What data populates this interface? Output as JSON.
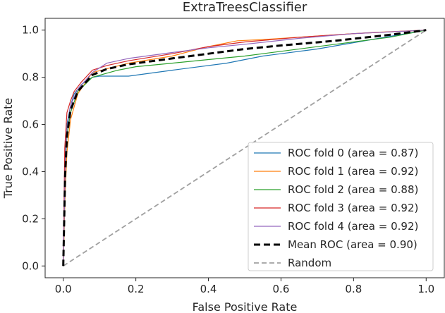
{
  "chart_data": {
    "type": "line",
    "title": "ExtraTreesClassifier",
    "xlabel": "False Positive Rate",
    "ylabel": "True Positive Rate",
    "xlim": [
      -0.05,
      1.05
    ],
    "ylim": [
      -0.05,
      1.05
    ],
    "xticks": [
      0.0,
      0.2,
      0.4,
      0.6,
      0.8,
      1.0
    ],
    "xtick_labels": [
      "0.0",
      "0.2",
      "0.4",
      "0.6",
      "0.8",
      "1.0"
    ],
    "yticks": [
      0.0,
      0.2,
      0.4,
      0.6,
      0.8,
      1.0
    ],
    "ytick_labels": [
      "0.0",
      "0.2",
      "0.4",
      "0.6",
      "0.8",
      "1.0"
    ],
    "grid": false,
    "legend_position": "lower-right",
    "series": [
      {
        "name": "ROC fold 0 (area = 0.87)",
        "color": "#1f77b4",
        "style": "solid",
        "x": [
          0.0,
          0.005,
          0.01,
          0.02,
          0.03,
          0.05,
          0.08,
          0.1,
          0.18,
          0.3,
          0.45,
          0.55,
          0.7,
          0.85,
          1.0
        ],
        "y": [
          0.0,
          0.45,
          0.6,
          0.68,
          0.73,
          0.77,
          0.8,
          0.805,
          0.805,
          0.83,
          0.86,
          0.89,
          0.92,
          0.96,
          1.0
        ]
      },
      {
        "name": "ROC fold 1 (area = 0.92)",
        "color": "#ff7f0e",
        "style": "solid",
        "x": [
          0.0,
          0.005,
          0.01,
          0.02,
          0.04,
          0.08,
          0.18,
          0.3,
          0.4,
          0.48,
          0.55,
          0.7,
          0.85,
          1.0
        ],
        "y": [
          0.0,
          0.3,
          0.48,
          0.62,
          0.73,
          0.82,
          0.86,
          0.89,
          0.93,
          0.955,
          0.96,
          0.975,
          0.99,
          1.0
        ]
      },
      {
        "name": "ROC fold 2 (area = 0.88)",
        "color": "#2ca02c",
        "style": "solid",
        "x": [
          0.0,
          0.005,
          0.01,
          0.02,
          0.04,
          0.08,
          0.15,
          0.2,
          0.3,
          0.4,
          0.5,
          0.6,
          0.75,
          0.9,
          1.0
        ],
        "y": [
          0.0,
          0.4,
          0.55,
          0.65,
          0.74,
          0.8,
          0.83,
          0.845,
          0.86,
          0.875,
          0.89,
          0.91,
          0.94,
          0.97,
          1.0
        ]
      },
      {
        "name": "ROC fold 3 (area = 0.92)",
        "color": "#d62728",
        "style": "solid",
        "x": [
          0.0,
          0.004,
          0.01,
          0.02,
          0.03,
          0.05,
          0.08,
          0.12,
          0.18,
          0.3,
          0.4,
          0.5,
          0.65,
          0.8,
          1.0
        ],
        "y": [
          0.0,
          0.5,
          0.65,
          0.7,
          0.74,
          0.78,
          0.83,
          0.85,
          0.87,
          0.9,
          0.93,
          0.95,
          0.97,
          0.985,
          1.0
        ]
      },
      {
        "name": "ROC fold 4 (area = 0.92)",
        "color": "#9467bd",
        "style": "solid",
        "x": [
          0.0,
          0.005,
          0.01,
          0.02,
          0.04,
          0.08,
          0.12,
          0.18,
          0.3,
          0.4,
          0.5,
          0.65,
          0.8,
          1.0
        ],
        "y": [
          0.0,
          0.4,
          0.58,
          0.68,
          0.75,
          0.82,
          0.86,
          0.88,
          0.905,
          0.925,
          0.94,
          0.965,
          0.985,
          1.0
        ]
      },
      {
        "name": "Mean ROC (area = 0.90)",
        "color": "#000000",
        "style": "dashed-bold",
        "x": [
          0.0,
          0.005,
          0.01,
          0.02,
          0.04,
          0.08,
          0.12,
          0.18,
          0.3,
          0.4,
          0.5,
          0.6,
          0.75,
          0.9,
          1.0
        ],
        "y": [
          0.0,
          0.38,
          0.55,
          0.66,
          0.74,
          0.81,
          0.835,
          0.855,
          0.88,
          0.9,
          0.92,
          0.935,
          0.955,
          0.98,
          1.0
        ]
      },
      {
        "name": "Random",
        "color": "#a0a0a0",
        "style": "dashed",
        "x": [
          0.0,
          1.0
        ],
        "y": [
          0.0,
          1.0
        ]
      }
    ]
  }
}
